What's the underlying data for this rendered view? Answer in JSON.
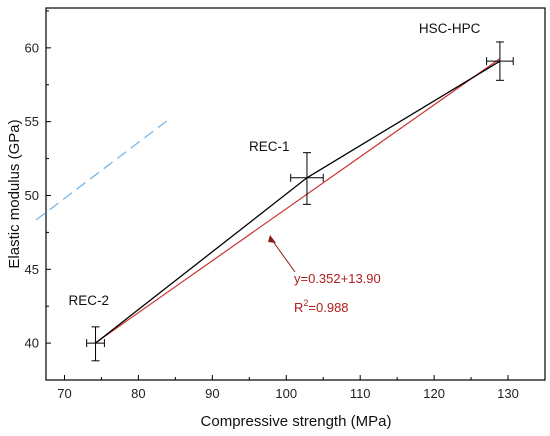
{
  "chart_data": {
    "type": "scatter",
    "title": "",
    "xlabel": "Compressive strength (MPa)",
    "ylabel": "Elastic modulus (GPa)",
    "xlim": [
      67.5,
      135
    ],
    "ylim": [
      37.5,
      62.7
    ],
    "xticks": [
      70,
      80,
      90,
      100,
      110,
      120,
      130
    ],
    "yticks": [
      40,
      45,
      50,
      55,
      60
    ],
    "grid": false,
    "series": [
      {
        "name": "",
        "color": "#000000",
        "points": [
          {
            "label": "REC-2",
            "x": 74.2,
            "y": 40.0,
            "xerr": 1.2,
            "yerr_low": 1.2,
            "yerr_high": 1.1
          },
          {
            "label": "REC-1",
            "x": 102.8,
            "y": 51.2,
            "xerr": 2.2,
            "yerr_low": 1.8,
            "yerr_high": 1.7
          },
          {
            "label": "HSC-HPC",
            "x": 128.9,
            "y": 59.1,
            "xerr": 1.8,
            "yerr_low": 1.3,
            "yerr_high": 1.3
          }
        ]
      }
    ],
    "fit": {
      "color": "#c83232",
      "slope": 0.352,
      "intercept": 13.9,
      "x_range": [
        74.2,
        128.9
      ],
      "equation": "y=0.352+13.90",
      "r2_prefix": "R",
      "r2_exp": "2",
      "r2_suffix": "=0.988"
    }
  }
}
